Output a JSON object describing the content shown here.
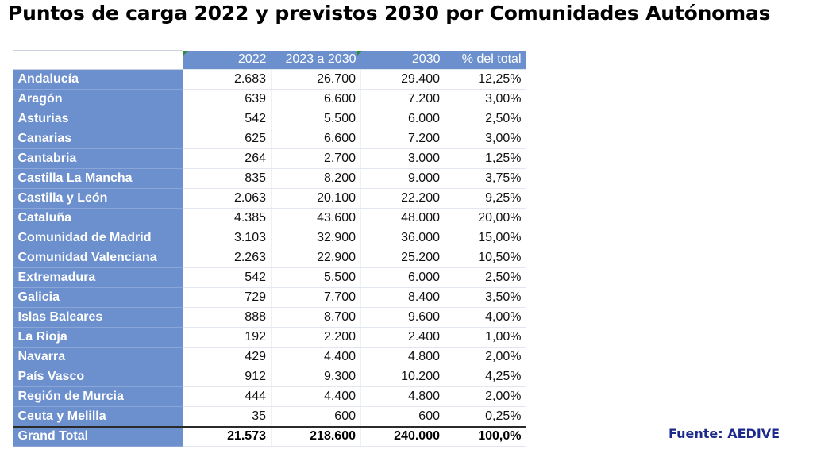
{
  "title": "Puntos de carga 2022 y previstos 2030 por Comunidades Autónomas",
  "source": "Fuente: AEDIVE",
  "chart_data": {
    "type": "table",
    "title": "Puntos de carga 2022 y previstos 2030 por Comunidades Autónomas",
    "columns": [
      "",
      "2022",
      "2023 a 2030",
      "2030",
      "% del total"
    ],
    "rows": [
      [
        "Andalucía",
        "2.683",
        "26.700",
        "29.400",
        "12,25%"
      ],
      [
        "Aragón",
        "639",
        "6.600",
        "7.200",
        "3,00%"
      ],
      [
        "Asturias",
        "542",
        "5.500",
        "6.000",
        "2,50%"
      ],
      [
        "Canarias",
        "625",
        "6.600",
        "7.200",
        "3,00%"
      ],
      [
        "Cantabria",
        "264",
        "2.700",
        "3.000",
        "1,25%"
      ],
      [
        "Castilla La Mancha",
        "835",
        "8.200",
        "9.000",
        "3,75%"
      ],
      [
        "Castilla y León",
        "2.063",
        "20.100",
        "22.200",
        "9,25%"
      ],
      [
        "Cataluña",
        "4.385",
        "43.600",
        "48.000",
        "20,00%"
      ],
      [
        "Comunidad de Madrid",
        "3.103",
        "32.900",
        "36.000",
        "15,00%"
      ],
      [
        "Comunidad Valenciana",
        "2.263",
        "22.900",
        "25.200",
        "10,50%"
      ],
      [
        "Extremadura",
        "542",
        "5.500",
        "6.000",
        "2,50%"
      ],
      [
        "Galicia",
        "729",
        "7.700",
        "8.400",
        "3,50%"
      ],
      [
        "Islas Baleares",
        "888",
        "8.700",
        "9.600",
        "4,00%"
      ],
      [
        "La Rioja",
        "192",
        "2.200",
        "2.400",
        "1,00%"
      ],
      [
        "Navarra",
        "429",
        "4.400",
        "4.800",
        "2,00%"
      ],
      [
        "País Vasco",
        "912",
        "9.300",
        "10.200",
        "4,25%"
      ],
      [
        "Región de Murcia",
        "444",
        "4.400",
        "4.800",
        "2,00%"
      ],
      [
        "Ceuta y Melilla",
        "35",
        "600",
        "600",
        "0,25%"
      ]
    ],
    "total": [
      "Grand Total",
      "21.573",
      "218.600",
      "240.000",
      "100,0%"
    ]
  }
}
